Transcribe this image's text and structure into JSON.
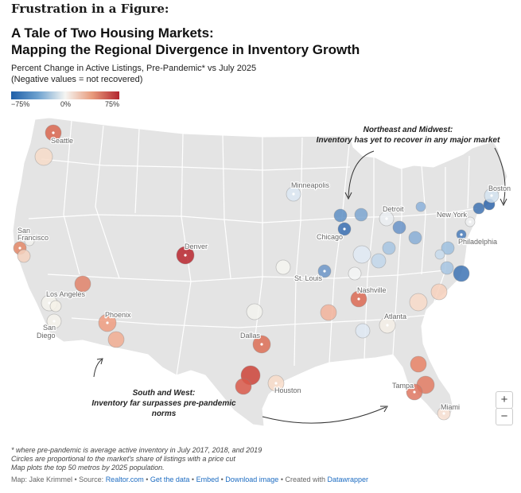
{
  "header": {
    "kicker": "Frustration in a Figure:",
    "title_line1": "A Tale of Two Housing Markets:",
    "title_line2": "Mapping the Regional Divergence in Inventory Growth",
    "subtitle_line1": "Percent Change in Active Listings, Pre-Pandemic* vs July 2025",
    "subtitle_line2": "(Negative values = not recovered)"
  },
  "legend": {
    "min_label": "−75%",
    "mid_label": "0%",
    "max_label": "75%",
    "colors": [
      "#1f5fa8",
      "#6fa3d0",
      "#f5f5f2",
      "#e89a7b",
      "#b2262f"
    ]
  },
  "annotations": {
    "northeast_line1": "Northeast and Midwest:",
    "northeast_line2": "Inventory has yet to recover in any major market",
    "south_line1": "South and West:",
    "south_line2": "Inventory far surpasses pre-pandemic",
    "south_line3": "norms"
  },
  "controls": {
    "zoom_in": "+",
    "zoom_out": "−"
  },
  "footer": {
    "note1": "* where pre-pandemic is average active inventory in July 2017, 2018, and 2019",
    "note2": "Circles are proportional to the market's share of listings with a price cut",
    "note3": "Map plots the top 50 metros by 2025 population.",
    "credit_prefix": "Map: Jake Krimmel • Source: ",
    "source_link": "Realtor.com",
    "sep1": " • ",
    "get_data": "Get the data",
    "sep2": " • ",
    "embed": "Embed",
    "sep3": " • ",
    "download": "Download image",
    "created_prefix": " • Created with ",
    "datawrapper": "Datawrapper"
  },
  "labels": [
    {
      "id": "seattle",
      "text": "Seattle"
    },
    {
      "id": "san-francisco",
      "text": "San Francisco"
    },
    {
      "id": "los-angeles",
      "text": "Los Angeles"
    },
    {
      "id": "san-diego",
      "text": "San Diego"
    },
    {
      "id": "phoenix",
      "text": "Phoenix"
    },
    {
      "id": "denver",
      "text": "Denver"
    },
    {
      "id": "dallas",
      "text": "Dallas"
    },
    {
      "id": "houston",
      "text": "Houston"
    },
    {
      "id": "minneapolis",
      "text": "Minneapolis"
    },
    {
      "id": "chicago",
      "text": "Chicago"
    },
    {
      "id": "detroit",
      "text": "Detroit"
    },
    {
      "id": "st-louis",
      "text": "St. Louis"
    },
    {
      "id": "nashville",
      "text": "Nashville"
    },
    {
      "id": "atlanta",
      "text": "Atlanta"
    },
    {
      "id": "tampa",
      "text": "Tampa"
    },
    {
      "id": "miami",
      "text": "Miami"
    },
    {
      "id": "new-york",
      "text": "New York"
    },
    {
      "id": "philadelphia",
      "text": "Philadelphia"
    },
    {
      "id": "boston",
      "text": "Boston"
    }
  ]
}
